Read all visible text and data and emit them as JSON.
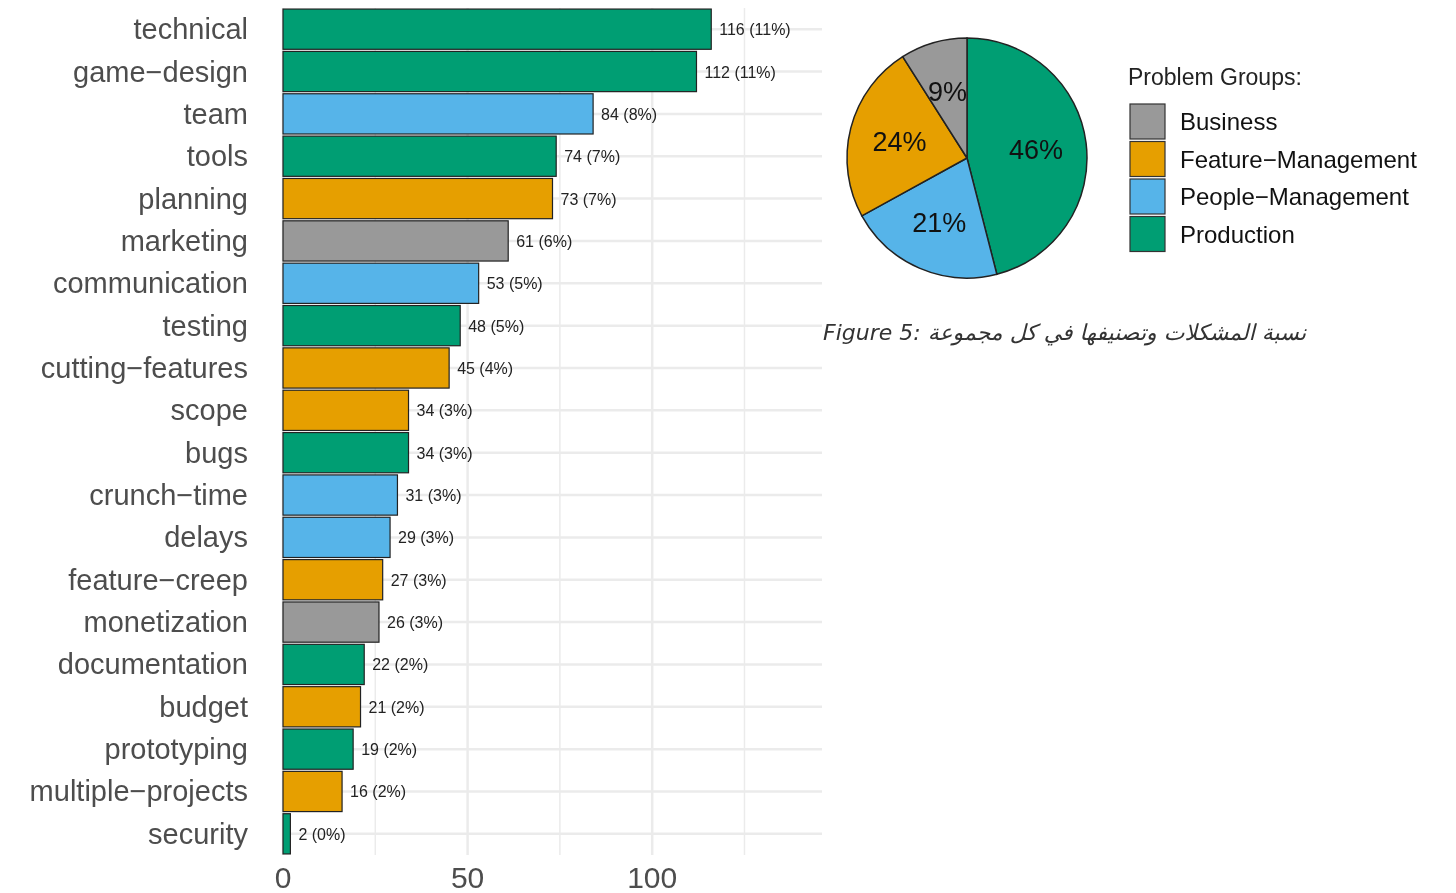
{
  "chart_data": [
    {
      "type": "bar",
      "orientation": "horizontal",
      "categories": [
        "technical",
        "game−design",
        "team",
        "tools",
        "planning",
        "marketing",
        "communication",
        "testing",
        "cutting−features",
        "scope",
        "bugs",
        "crunch−time",
        "delays",
        "feature−creep",
        "monetization",
        "documentation",
        "budget",
        "prototyping",
        "multiple−projects",
        "security"
      ],
      "values": [
        116,
        112,
        84,
        74,
        73,
        61,
        53,
        48,
        45,
        34,
        34,
        31,
        29,
        27,
        26,
        22,
        21,
        19,
        16,
        2
      ],
      "colors": [
        "#009e73",
        "#009e73",
        "#56b4e9",
        "#009e73",
        "#e69f00",
        "#999999",
        "#56b4e9",
        "#009e73",
        "#e69f00",
        "#e69f00",
        "#009e73",
        "#56b4e9",
        "#56b4e9",
        "#e69f00",
        "#999999",
        "#009e73",
        "#e69f00",
        "#009e73",
        "#e69f00",
        "#009e73"
      ],
      "value_labels": [
        "116 (11%)",
        "112 (11%)",
        "84 (8%)",
        "74 (7%)",
        "73 (7%)",
        "61 (6%)",
        "53 (5%)",
        "48 (5%)",
        "45 (4%)",
        "34 (3%)",
        "34 (3%)",
        "31 (3%)",
        "29 (3%)",
        "27 (3%)",
        "26 (3%)",
        "22 (2%)",
        "21 (2%)",
        "19 (2%)",
        "16 (2%)",
        "2 (0%)"
      ],
      "xlim": [
        0,
        146
      ],
      "xticks": [
        0,
        {
          "value": 25,
          "label": null
        },
        50,
        {
          "value": 75,
          "label": null
        },
        100,
        {
          "value": 125,
          "label": null
        }
      ],
      "grid": true
    },
    {
      "type": "pie",
      "categories": [
        "Business",
        "Feature−Management",
        "People−Management",
        "Production"
      ],
      "values": [
        9,
        24,
        21,
        46
      ],
      "colors": [
        "#999999",
        "#e69f00",
        "#56b4e9",
        "#009e73"
      ],
      "value_labels": [
        "9%",
        "24%",
        "21%",
        "46%"
      ],
      "legend_title": "Problem Groups:",
      "legend": "right",
      "annotations": [
        "Figure 5: نسبة المشكلات وتصنيفها في كل مجموعة"
      ]
    }
  ]
}
